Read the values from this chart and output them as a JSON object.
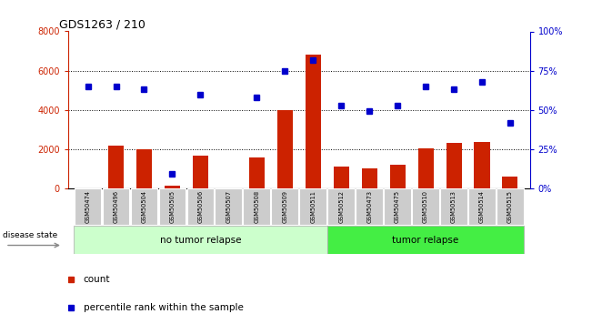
{
  "title": "GDS1263 / 210",
  "samples": [
    "GSM50474",
    "GSM50496",
    "GSM50504",
    "GSM50505",
    "GSM50506",
    "GSM50507",
    "GSM50508",
    "GSM50509",
    "GSM50511",
    "GSM50512",
    "GSM50473",
    "GSM50475",
    "GSM50510",
    "GSM50513",
    "GSM50514",
    "GSM50515"
  ],
  "counts": [
    0,
    2200,
    2000,
    120,
    1650,
    0,
    1580,
    4000,
    6800,
    1100,
    1000,
    1200,
    2050,
    2300,
    2350,
    620
  ],
  "percentiles": [
    65,
    65,
    63,
    9,
    60,
    null,
    58,
    75,
    82,
    53,
    49,
    53,
    65,
    63,
    68,
    42
  ],
  "no_tumor_count": 9,
  "tumor_count": 7,
  "ylim_left": [
    0,
    8000
  ],
  "ylim_right": [
    0,
    100
  ],
  "yticks_left": [
    0,
    2000,
    4000,
    6000,
    8000
  ],
  "yticks_right": [
    0,
    25,
    50,
    75,
    100
  ],
  "bar_color": "#cc2200",
  "dot_color": "#0000cc",
  "no_tumor_color": "#ccffcc",
  "tumor_color": "#44ee44",
  "label_bg_color": "#cccccc",
  "disease_state_label": "disease state",
  "no_tumor_label": "no tumor relapse",
  "tumor_label": "tumor relapse",
  "count_legend": "count",
  "percentile_legend": "percentile rank within the sample",
  "fig_width": 6.51,
  "fig_height": 3.45,
  "fig_dpi": 100
}
